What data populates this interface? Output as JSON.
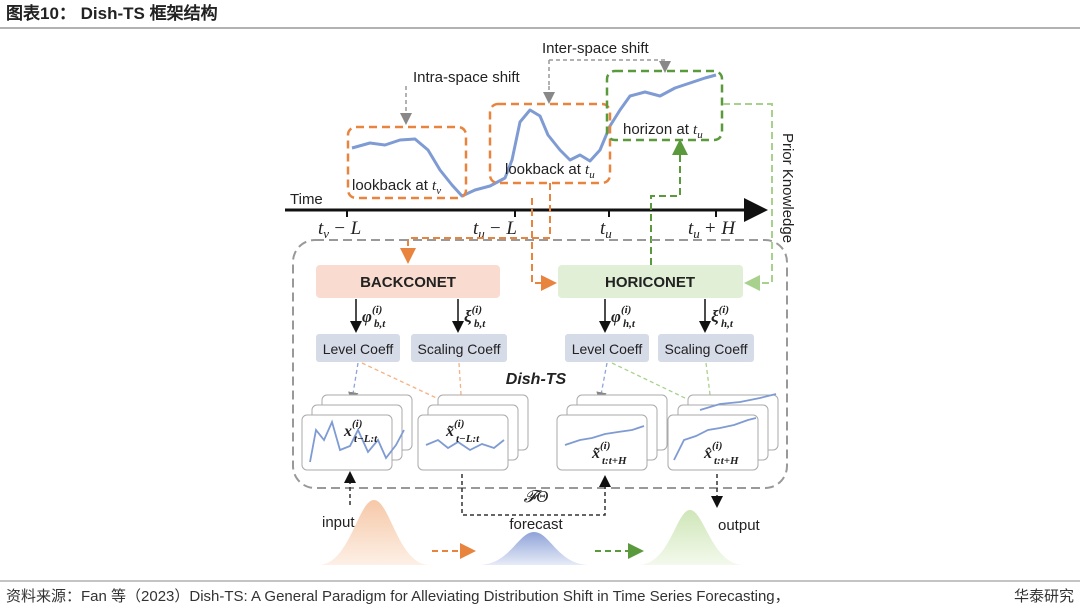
{
  "header": {
    "title": "图表10： Dish-TS 框架结构"
  },
  "top": {
    "inter_space_shift": "Inter-space shift",
    "intra_space_shift": "Intra-space shift",
    "prior_knowledge": "Prior Knowledge",
    "lookback_v": {
      "text": "lookback at ",
      "var": "t",
      "sub": "v"
    },
    "lookback_u": {
      "text": "lookback at ",
      "var": "t",
      "sub": "u"
    },
    "horizon": {
      "text": "horizon at ",
      "var": "t",
      "sub": "u"
    }
  },
  "timeline": {
    "label": "Time",
    "ticks": [
      {
        "var": "t",
        "sub": "v",
        "rest": "− L"
      },
      {
        "var": "t",
        "sub": "u",
        "rest": "− L"
      },
      {
        "var": "t",
        "sub": "u"
      },
      {
        "var": "t",
        "sub": "u",
        "rest": "+ H"
      }
    ]
  },
  "nets": {
    "backconet": "BACKCONET",
    "horiconet": "HORICONET",
    "name": "Dish-TS",
    "params": [
      {
        "base": "φ",
        "sup": "(i)",
        "sub": "b,t"
      },
      {
        "base": "ξ",
        "sup": "(i)",
        "sub": "b,t"
      },
      {
        "base": "φ",
        "sup": "(i)",
        "sub": "h,t"
      },
      {
        "base": "ξ",
        "sup": "(i)",
        "sub": "h,t"
      }
    ],
    "coeffs": [
      "Level Coeff",
      "Scaling Coeff",
      "Level Coeff",
      "Scaling Coeff"
    ]
  },
  "panels": [
    {
      "base": "x",
      "sup": "(i)",
      "sub": "t−L:t"
    },
    {
      "base": "x̃",
      "sup": "(i)",
      "sub": "t−L:t"
    },
    {
      "base": "x̃",
      "sup": "(i)",
      "sub": "t:t+H"
    },
    {
      "base": "x̂",
      "sup": "(i)",
      "sub": "t:t+H"
    }
  ],
  "flow": {
    "input": "input",
    "model": "𝓕Θ",
    "forecast": "forecast",
    "output": "output"
  },
  "footer": {
    "source": "资料来源：Fan 等（2023）Dish-TS: A General Paradigm for Alleviating Distribution Shift in Time Series Forecasting，",
    "credit": "华泰研究"
  }
}
